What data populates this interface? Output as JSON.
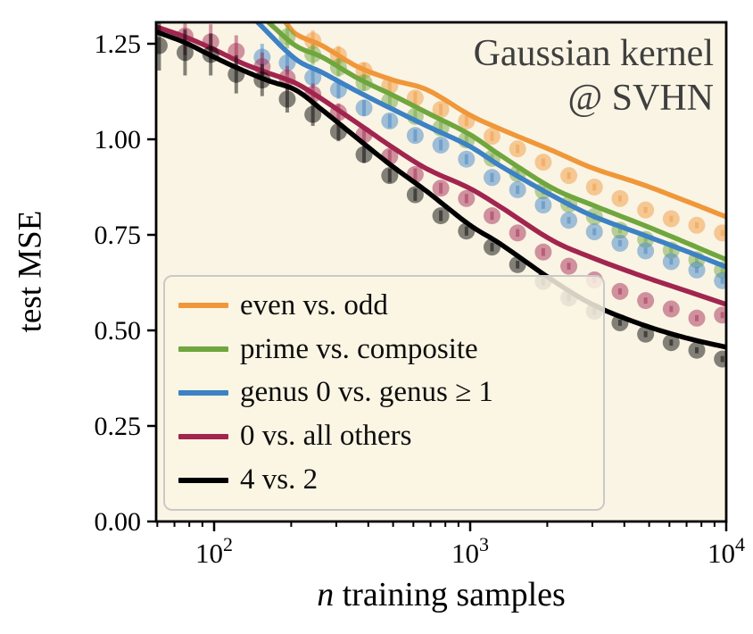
{
  "chart_data": {
    "type": "line",
    "title_lines": [
      "Gaussian kernel",
      "@ SVHN"
    ],
    "ylabel": "test MSE",
    "xlabel": {
      "italic": "n",
      "rest": " training samples"
    },
    "x_scale": "log",
    "xlim": [
      59,
      10000
    ],
    "ylim": [
      0,
      1.306
    ],
    "grid": false,
    "legend_position": "lower left",
    "colors": {
      "plot_bg": "#faf4e4",
      "title": "#3f3f3f",
      "axis": "#000000",
      "legend_border": "#c9c9c9"
    },
    "y_ticks": [
      {
        "value": 0.0,
        "label": "0.00"
      },
      {
        "value": 0.25,
        "label": "0.25"
      },
      {
        "value": 0.5,
        "label": "0.50"
      },
      {
        "value": 0.75,
        "label": "0.75"
      },
      {
        "value": 1.0,
        "label": "1.00"
      },
      {
        "value": 1.25,
        "label": "1.25"
      }
    ],
    "x_major_ticks": [
      {
        "value": 100,
        "base": "10",
        "exp": "2"
      },
      {
        "value": 1000,
        "base": "10",
        "exp": "3"
      },
      {
        "value": 10000,
        "base": "10",
        "exp": "4"
      }
    ],
    "x_minor_ticks": [
      60,
      70,
      80,
      90,
      200,
      300,
      400,
      500,
      600,
      700,
      800,
      900,
      2000,
      3000,
      4000,
      5000,
      6000,
      7000,
      8000,
      9000
    ],
    "series": [
      {
        "name": "even vs. odd",
        "color": "#f0973a",
        "line": {
          "n": [
            190,
            208,
            264,
            363,
            500,
            676,
            1000,
            1300,
            2100,
            3000,
            4650,
            7000,
            10000
          ],
          "mse": [
            1.306,
            1.276,
            1.245,
            1.19,
            1.155,
            1.13,
            1.063,
            1.028,
            0.97,
            0.925,
            0.883,
            0.838,
            0.797
          ]
        },
        "dots": {
          "n": [
            243,
            306,
            385,
            485,
            610,
            768,
            967,
            1217,
            1532,
            1929,
            2428,
            3056,
            3847,
            4843,
            6096,
            7674,
            9660
          ],
          "mse": [
            1.258,
            1.22,
            1.18,
            1.14,
            1.108,
            1.078,
            1.048,
            1.008,
            0.975,
            0.94,
            0.905,
            0.875,
            0.845,
            0.815,
            0.792,
            0.775,
            0.755
          ],
          "err": [
            0.027,
            0.024,
            0.021,
            0.019,
            0.017,
            0.015,
            0.013,
            0.012,
            0.011,
            0.01,
            0.009,
            0.009,
            0.008,
            0.008,
            0.008,
            0.008,
            0.008
          ]
        }
      },
      {
        "name": "prime vs. composite",
        "color": "#6fa63e",
        "line": {
          "n": [
            163,
            208,
            264,
            363,
            500,
            676,
            1000,
            1300,
            2100,
            3000,
            4650,
            7000,
            10000
          ],
          "mse": [
            1.306,
            1.245,
            1.215,
            1.16,
            1.115,
            1.07,
            1.012,
            0.96,
            0.872,
            0.828,
            0.778,
            0.729,
            0.685
          ]
        },
        "dots": {
          "n": [
            193,
            243,
            306,
            385,
            485,
            610,
            768,
            967,
            1217,
            1532,
            1929,
            2428,
            3056,
            3847,
            4843,
            6096,
            7674,
            9660
          ],
          "mse": [
            1.268,
            1.222,
            1.188,
            1.148,
            1.1,
            1.06,
            1.03,
            0.998,
            0.95,
            0.91,
            0.865,
            0.83,
            0.798,
            0.762,
            0.738,
            0.71,
            0.685,
            0.658
          ],
          "err": [
            0.03,
            0.027,
            0.024,
            0.021,
            0.019,
            0.017,
            0.015,
            0.013,
            0.012,
            0.011,
            0.01,
            0.009,
            0.009,
            0.008,
            0.008,
            0.008,
            0.008,
            0.008
          ]
        }
      },
      {
        "name": "genus 0 vs. genus ≥ 1",
        "color": "#3c82c4",
        "line": {
          "n": [
            148,
            208,
            264,
            363,
            500,
            676,
            1000,
            1300,
            2100,
            3000,
            4650,
            7000,
            10000
          ],
          "mse": [
            1.306,
            1.21,
            1.175,
            1.125,
            1.078,
            1.035,
            0.981,
            0.932,
            0.852,
            0.8,
            0.752,
            0.707,
            0.666
          ]
        },
        "dots": {
          "n": [
            154,
            193,
            243,
            306,
            385,
            485,
            610,
            768,
            967,
            1217,
            1532,
            1929,
            2428,
            3056,
            3847,
            4843,
            6096,
            7674,
            9660
          ],
          "mse": [
            1.215,
            1.2,
            1.162,
            1.13,
            1.082,
            1.048,
            1.01,
            0.985,
            0.948,
            0.9,
            0.868,
            0.828,
            0.788,
            0.758,
            0.728,
            0.708,
            0.68,
            0.658,
            0.63
          ],
          "err": [
            0.035,
            0.03,
            0.027,
            0.024,
            0.021,
            0.018,
            0.016,
            0.014,
            0.013,
            0.012,
            0.011,
            0.01,
            0.009,
            0.009,
            0.008,
            0.008,
            0.008,
            0.008,
            0.008
          ]
        }
      },
      {
        "name": "0 vs. all others",
        "color": "#a1254f",
        "line": {
          "n": [
            59,
            77,
            100,
            130,
            165,
            208,
            264,
            363,
            500,
            676,
            1000,
            1300,
            2100,
            3000,
            4650,
            7000,
            10000
          ],
          "mse": [
            1.295,
            1.268,
            1.235,
            1.198,
            1.172,
            1.147,
            1.105,
            1.042,
            0.978,
            0.923,
            0.871,
            0.825,
            0.735,
            0.69,
            0.643,
            0.603,
            0.568
          ]
        },
        "dots": {
          "n": [
            77,
            97,
            122,
            154,
            193,
            243,
            306,
            385,
            485,
            610,
            768,
            967,
            1217,
            1532,
            1929,
            2428,
            3056,
            3847,
            4843,
            6096,
            7674,
            9660
          ],
          "mse": [
            1.27,
            1.255,
            1.23,
            1.19,
            1.16,
            1.118,
            1.07,
            1.012,
            0.955,
            0.908,
            0.872,
            0.845,
            0.8,
            0.755,
            0.705,
            0.668,
            0.632,
            0.602,
            0.578,
            0.556,
            0.532,
            0.54
          ],
          "err": [
            0.05,
            0.046,
            0.042,
            0.037,
            0.032,
            0.028,
            0.024,
            0.021,
            0.018,
            0.016,
            0.014,
            0.012,
            0.011,
            0.01,
            0.01,
            0.009,
            0.009,
            0.008,
            0.008,
            0.008,
            0.008,
            0.008
          ]
        }
      },
      {
        "name": "4 vs. 2",
        "color": "#000000",
        "line": {
          "n": [
            59,
            77,
            100,
            130,
            165,
            208,
            264,
            363,
            500,
            676,
            1000,
            1300,
            2100,
            3000,
            4650,
            7000,
            10000
          ],
          "mse": [
            1.282,
            1.253,
            1.215,
            1.18,
            1.152,
            1.129,
            1.077,
            1.002,
            0.928,
            0.864,
            0.775,
            0.728,
            0.631,
            0.568,
            0.516,
            0.48,
            0.456
          ]
        },
        "dots": {
          "n": [
            61,
            77,
            97,
            122,
            154,
            193,
            243,
            306,
            385,
            485,
            610,
            768,
            967,
            1217,
            1532,
            1929,
            2428,
            3056,
            3847,
            4843,
            6096,
            7674,
            9660
          ],
          "mse": [
            1.245,
            1.227,
            1.222,
            1.17,
            1.155,
            1.105,
            1.065,
            1.02,
            0.96,
            0.905,
            0.855,
            0.8,
            0.76,
            0.718,
            0.672,
            0.628,
            0.585,
            0.55,
            0.52,
            0.49,
            0.468,
            0.448,
            0.425
          ],
          "err": [
            0.065,
            0.06,
            0.055,
            0.05,
            0.042,
            0.035,
            0.03,
            0.025,
            0.022,
            0.018,
            0.016,
            0.014,
            0.012,
            0.011,
            0.01,
            0.01,
            0.009,
            0.009,
            0.008,
            0.008,
            0.008,
            0.008,
            0.008
          ]
        }
      }
    ]
  }
}
